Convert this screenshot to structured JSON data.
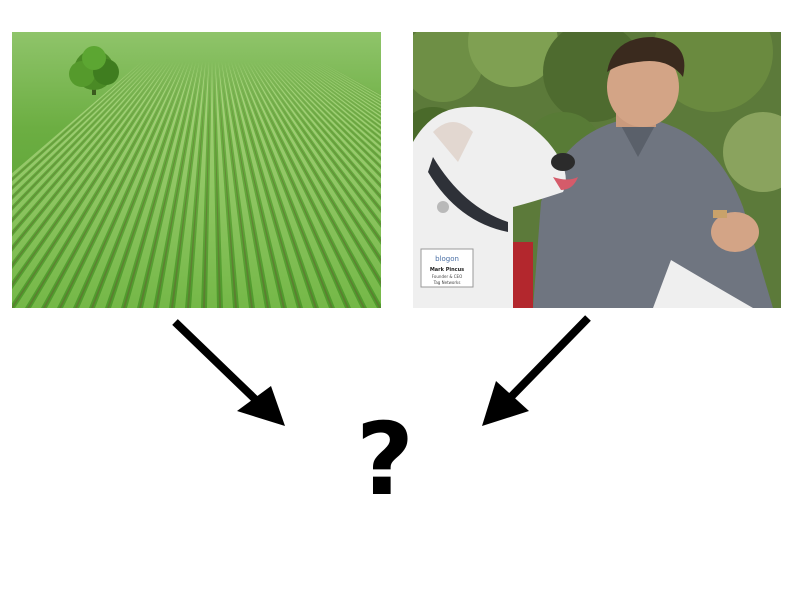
{
  "figure": {
    "left_image": {
      "icon": "crop-field-photo",
      "subject": "green crop field with a lone tree"
    },
    "right_image": {
      "icon": "man-with-dog-photo",
      "subject": "white dog licking a man in a grey polo shirt",
      "badge_brand": "blogon",
      "badge_name": "Mark Pincus",
      "badge_lines": [
        "Founder & CEO",
        "Tag Networks"
      ]
    },
    "arrows": {
      "left_arrow_icon": "arrow-down-right-icon",
      "right_arrow_icon": "arrow-down-left-icon",
      "color": "#000000"
    },
    "result": {
      "symbol": "?"
    }
  }
}
